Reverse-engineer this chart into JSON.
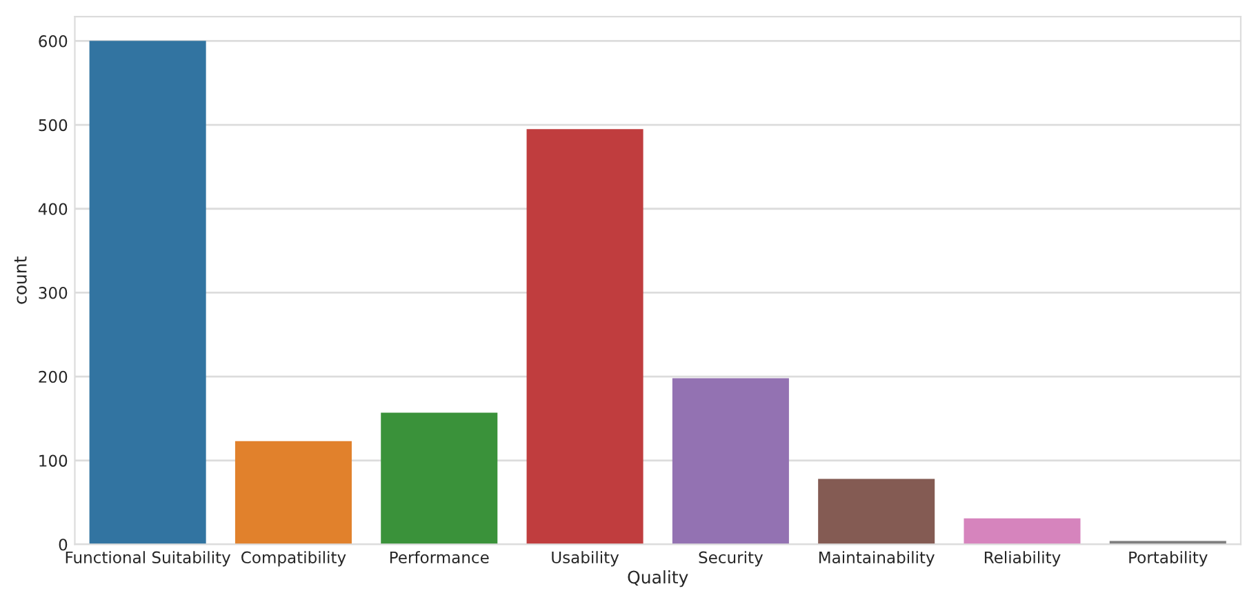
{
  "chart_data": {
    "type": "bar",
    "xlabel": "Quality",
    "ylabel": "count",
    "categories": [
      "Functional Suitability",
      "Compatibility",
      "Performance",
      "Usability",
      "Security",
      "Maintainability",
      "Reliability",
      "Portability"
    ],
    "values": [
      600,
      123,
      157,
      495,
      198,
      78,
      31,
      4
    ],
    "colors": [
      "#3274a1",
      "#e1812c",
      "#3a923a",
      "#c03d3e",
      "#9372b2",
      "#845b53",
      "#d684bd",
      "#7f7f7f"
    ],
    "ylim": [
      0,
      629
    ],
    "yticks": [
      0,
      100,
      200,
      300,
      400,
      500,
      600
    ],
    "grid": "y"
  }
}
